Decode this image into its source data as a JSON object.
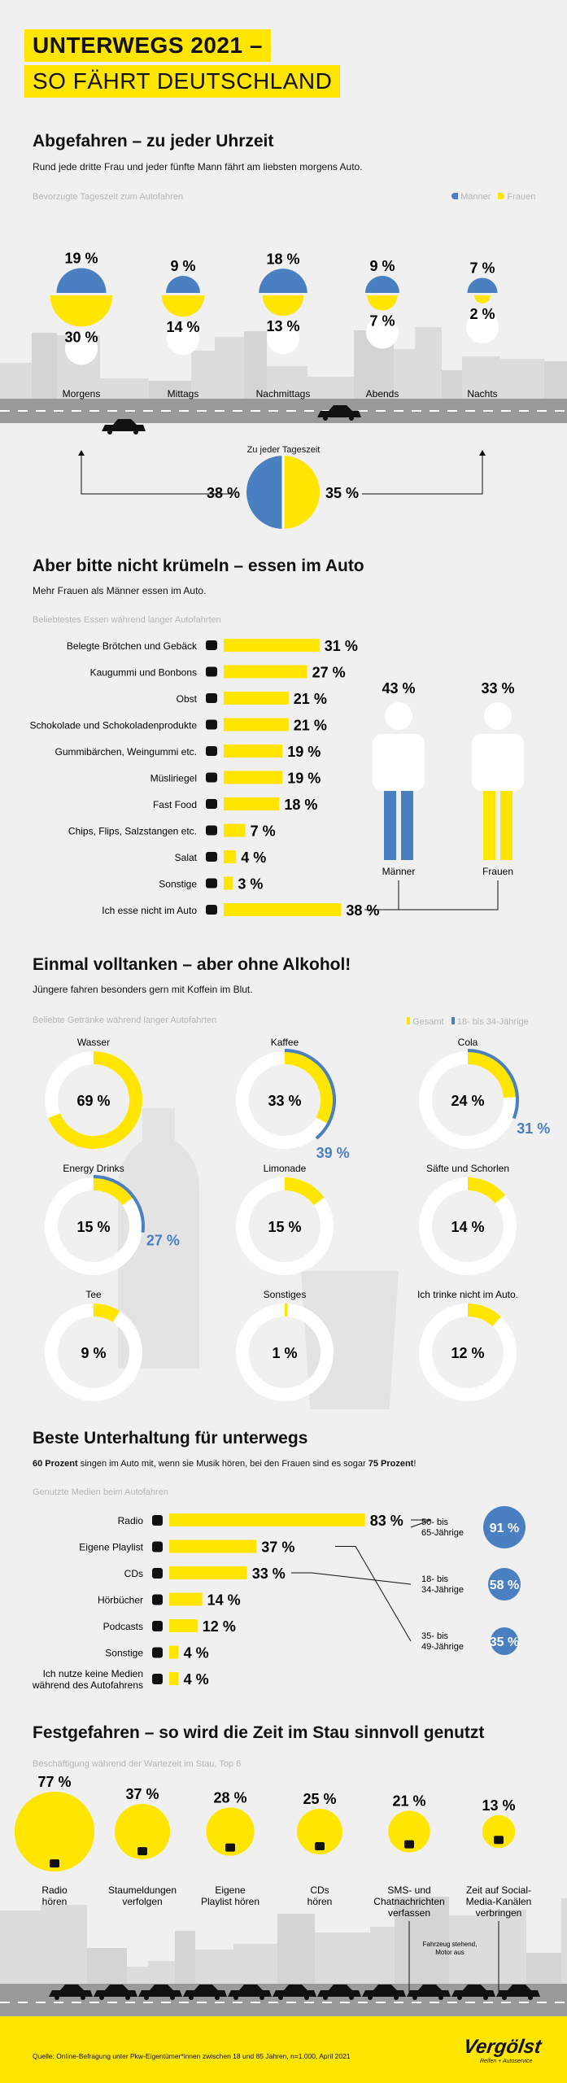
{
  "header": {
    "line1": "UNTERWEGS 2021 –",
    "line2": "SO FÄHRT DEUTSCHLAND"
  },
  "colors": {
    "yellow": "#ffe500",
    "blue": "#4a7fc1",
    "grey": "#cfcfcf",
    "bg": "#f0f0f0"
  },
  "section1": {
    "title": "Abgefahren – zu jeder Uhrzeit",
    "subtitle": "Rund jede dritte Frau und jeder fünfte Mann fährt am liebsten morgens Auto.",
    "caption": "Bevorzugte Tageszeit zum Autofahren",
    "legend_men": "Männer",
    "legend_women": "Frauen",
    "overall_label": "Zu jeder Tageszeit",
    "overall_men": "38 %",
    "overall_women": "35 %"
  },
  "section2": {
    "title": "Aber bitte nicht krümeln – essen im Auto",
    "subtitle": "Mehr Frauen als Männer essen im Auto.",
    "caption": "Beliebtestes Essen während langer Autofahrten",
    "men_pct": "43 %",
    "women_pct": "33 %",
    "men_label": "Männer",
    "women_label": "Frauen"
  },
  "section3": {
    "title": "Einmal volltanken – aber ohne Alkohol!",
    "subtitle": "Jüngere fahren besonders gern mit Koffein im Blut.",
    "caption": "Beliebte Getränke während langer Autofahrten",
    "legend_total": "Gesamt",
    "legend_young": "18- bis 34-Jährige"
  },
  "section4": {
    "title": "Beste Unterhaltung für unterwegs",
    "subtitle_a": "60 Prozent",
    "subtitle_b": " singen im Auto mit, wenn sie Musik hören, bei den Frauen sind es sogar ",
    "subtitle_c": "75 Prozent",
    "subtitle_d": "!",
    "caption": "Genutzte Medien beim Autofahren"
  },
  "section5": {
    "title": "Festgefahren – so wird die Zeit im Stau sinnvoll genutzt",
    "caption": "Beschäftigung während der Wartezeit im Stau, Top 6",
    "note_line1": "Fahrzeug stehend,",
    "note_line2": "Motor aus"
  },
  "footer": {
    "source": "Quelle: Online-Befragung unter Pkw-Eigentümer*innen zwischen 18 und 85 Jahren, n=1.000, April 2021",
    "logo": "Vergölst",
    "logo_sub": "Reifen + Autoservice"
  },
  "chart_data": [
    {
      "type": "bar",
      "title": "Bevorzugte Tageszeit zum Autofahren",
      "categories": [
        "Morgens",
        "Mittags",
        "Nachmittags",
        "Abends",
        "Nachts"
      ],
      "series": [
        {
          "name": "Männer",
          "values": [
            19,
            9,
            18,
            9,
            7
          ]
        },
        {
          "name": "Frauen",
          "values": [
            30,
            14,
            13,
            7,
            2
          ]
        }
      ]
    },
    {
      "type": "pie",
      "title": "Zu jeder Tageszeit",
      "series": [
        {
          "name": "Männer",
          "values": [
            38
          ]
        },
        {
          "name": "Frauen",
          "values": [
            35
          ]
        }
      ]
    },
    {
      "type": "bar",
      "title": "Beliebtestes Essen während langer Autofahrten",
      "categories": [
        "Belegte Brötchen und Gebäck",
        "Kaugummi und Bonbons",
        "Obst",
        "Schokolade und Schokoladenprodukte",
        "Gummibärchen, Weingummi etc.",
        "Müsliriegel",
        "Fast Food",
        "Chips, Flips, Salzstangen etc.",
        "Salat",
        "Sonstige",
        "Ich esse nicht im Auto"
      ],
      "values": [
        31,
        27,
        21,
        21,
        19,
        19,
        18,
        7,
        4,
        3,
        38
      ],
      "labels": [
        "31 %",
        "27 %",
        "21 %",
        "21 %",
        "19 %",
        "19 %",
        "18 %",
        "7 %",
        "4 %",
        "3 %",
        "38 %"
      ],
      "icons": [
        "burger-icon",
        "gum-icon",
        "apple-icon",
        "chocolate-icon",
        "gummy-bear-icon",
        "bar-icon",
        "burger-icon",
        "chips-icon",
        "salad-icon",
        "dots-icon",
        "cross-icon"
      ]
    },
    {
      "type": "pie",
      "title": "Beliebte Getränke während langer Autofahrten",
      "categories": [
        "Wasser",
        "Kaffee",
        "Cola",
        "Energy Drinks",
        "Limonade",
        "Säfte und Schorlen",
        "Tee",
        "Sonstiges",
        "Ich trinke nicht im Auto."
      ],
      "series": [
        {
          "name": "Gesamt",
          "values": [
            69,
            33,
            24,
            15,
            15,
            14,
            9,
            1,
            12
          ]
        },
        {
          "name": "18- bis 34-Jährige",
          "values": [
            null,
            39,
            31,
            27,
            null,
            null,
            null,
            null,
            null
          ]
        }
      ],
      "labels_total": [
        "69 %",
        "33 %",
        "24 %",
        "15 %",
        "15 %",
        "14 %",
        "9 %",
        "1 %",
        "12 %"
      ],
      "labels_young": [
        "",
        "39 %",
        "31 %",
        "27 %",
        "",
        "",
        "",
        "",
        ""
      ]
    },
    {
      "type": "bar",
      "title": "Genutzte Medien beim Autofahren",
      "categories": [
        "Radio",
        "Eigene Playlist",
        "CDs",
        "Hörbücher",
        "Podcasts",
        "Sonstige",
        "Ich nutze keine Medien während des Autofahrens"
      ],
      "values": [
        83,
        37,
        33,
        14,
        12,
        4,
        4
      ],
      "labels": [
        "83 %",
        "37 %",
        "33 %",
        "14 %",
        "12 %",
        "4 %",
        "4 %"
      ],
      "icons": [
        "radio-icon",
        "playlist-icon",
        "cd-icon",
        "book-icon",
        "microphone-icon",
        "dots-icon",
        "cross-icon"
      ],
      "age_callouts": [
        {
          "group_line1": "50- bis",
          "group_line2": "65-Jährige",
          "value": "91 %",
          "for": "Radio"
        },
        {
          "group_line1": "18- bis",
          "group_line2": "34-Jährige",
          "value": "58 %",
          "for": "CDs"
        },
        {
          "group_line1": "35- bis",
          "group_line2": "49-Jährige",
          "value": "35 %",
          "for": "Eigene Playlist"
        }
      ]
    },
    {
      "type": "bar",
      "title": "Beschäftigung während der Wartezeit im Stau, Top 6",
      "categories_line1": [
        "Radio",
        "Staumeldungen",
        "Eigene",
        "CDs",
        "SMS- und",
        "Zeit auf Social-"
      ],
      "categories_line2": [
        "hören",
        "verfolgen",
        "Playlist hören",
        "hören",
        "Chatnachrichten",
        "Media-Kanälen"
      ],
      "categories_line3": [
        "",
        "",
        "",
        "",
        "verfassen",
        "verbringen"
      ],
      "values": [
        77,
        37,
        28,
        25,
        21,
        13
      ],
      "labels": [
        "77 %",
        "37 %",
        "28 %",
        "25 %",
        "21 %",
        "13 %"
      ],
      "icons": [
        "radio-icon",
        "radio-icon",
        "playlist-icon",
        "cd-icon",
        "chat-icon",
        "social-icon"
      ]
    }
  ]
}
